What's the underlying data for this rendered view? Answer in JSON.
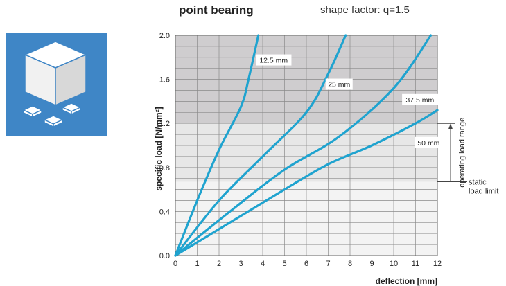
{
  "header": {
    "title": "point bearing",
    "shape_factor": "shape factor: q=1.5"
  },
  "icon": {
    "name": "point-bearing-cube-icon"
  },
  "colors": {
    "curve": "#1fa3cf",
    "zone_upper": "#cfcdcf",
    "zone_operating": "#e7e7e7",
    "zone_static": "#f3f3f3",
    "icon_bg": "#3f86c6"
  },
  "chart_data": {
    "type": "line",
    "title": "",
    "xlabel": "deflection [mm]",
    "ylabel": "specific load [N/mm²]",
    "xlim": [
      0,
      12
    ],
    "ylim": [
      0,
      2.0
    ],
    "x_ticks": [
      "0",
      "1",
      "2",
      "3",
      "4",
      "5",
      "6",
      "7",
      "8",
      "9",
      "10",
      "11",
      "12"
    ],
    "y_ticks": [
      "0.0",
      "0.4",
      "0.8",
      "1.2",
      "1.6",
      "2.0"
    ],
    "grid": true,
    "zones": [
      {
        "from": 0,
        "to": 0.67,
        "label": "static load limit",
        "label_lines": [
          "static",
          "load limit"
        ]
      },
      {
        "from": 0.67,
        "to": 1.2,
        "label": "operating load range"
      },
      {
        "from": 1.2,
        "to": 2.0,
        "label": ""
      }
    ],
    "series": [
      {
        "name": "12.5 mm",
        "x": [
          0,
          1,
          2,
          3,
          3.35,
          3.8
        ],
        "y": [
          0,
          0.5,
          0.96,
          1.35,
          1.6,
          2.0
        ]
      },
      {
        "name": "25 mm",
        "x": [
          0,
          2,
          4,
          6,
          7,
          7.8
        ],
        "y": [
          0,
          0.5,
          0.9,
          1.3,
          1.65,
          2.0
        ]
      },
      {
        "name": "37.5 mm",
        "x": [
          0,
          2.5,
          5,
          7.5,
          10,
          11.7
        ],
        "y": [
          0,
          0.4,
          0.78,
          1.08,
          1.52,
          2.0
        ]
      },
      {
        "name": "50 mm",
        "x": [
          0,
          2.5,
          5,
          7,
          9,
          11,
          12
        ],
        "y": [
          0,
          0.3,
          0.6,
          0.83,
          1.0,
          1.2,
          1.32
        ]
      }
    ]
  }
}
